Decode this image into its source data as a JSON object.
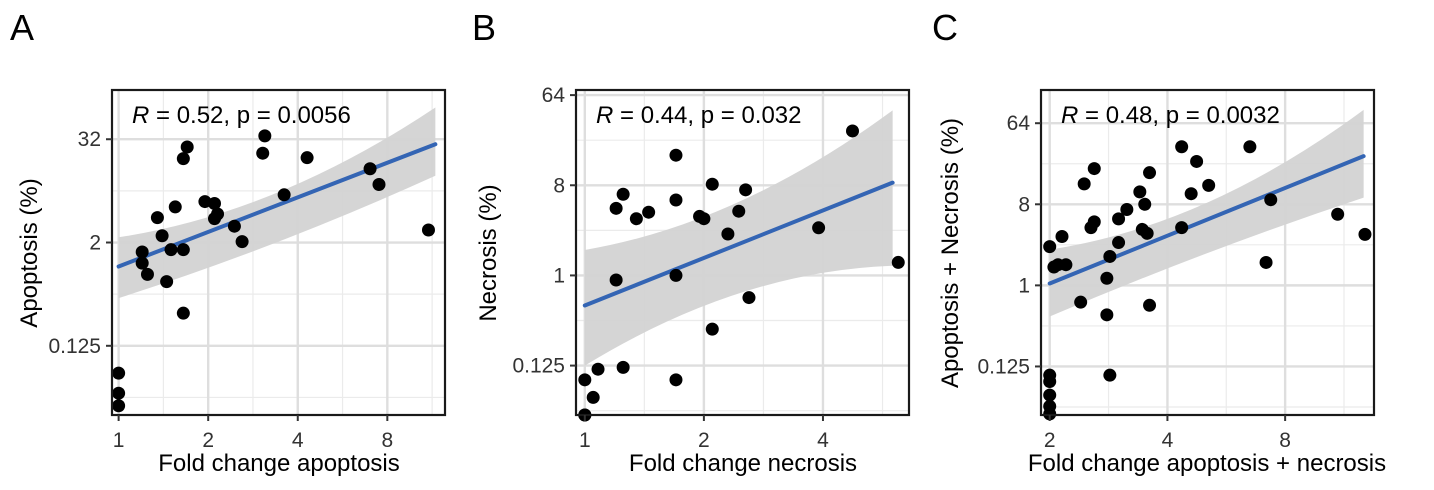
{
  "chart_data": [
    {
      "type": "scatter",
      "panel_label": "A",
      "xlabel": "Fold change apoptosis",
      "ylabel": "Apoptosis (%)",
      "x_scale": "log2",
      "y_scale": "log2",
      "xlim": [
        0.95,
        12.5
      ],
      "ylim": [
        0.0195,
        120
      ],
      "x_ticks": [
        1,
        2,
        4,
        8
      ],
      "x_tick_labels": [
        "1",
        "2",
        "4",
        "8"
      ],
      "y_ticks": [
        0.125,
        2,
        32
      ],
      "y_tick_labels": [
        "0.125",
        "2",
        "32"
      ],
      "grid": true,
      "annotation": {
        "r_symbol": "R",
        "text": " = 0.52, p = 0.0056"
      },
      "fit": {
        "x_start": 1.0,
        "y_start": 1.05,
        "x_end": 11.6,
        "y_end": 28,
        "ci_start": [
          0.45,
          2.3
        ],
        "ci_mid": [
          1.75,
          4.4
        ],
        "ci_end": [
          12,
          75
        ]
      },
      "points": [
        [
          1,
          0.025
        ],
        [
          1,
          0.035
        ],
        [
          1,
          0.06
        ],
        [
          1.2,
          1.55
        ],
        [
          1.2,
          1.15
        ],
        [
          1.25,
          0.85
        ],
        [
          1.35,
          3.9
        ],
        [
          1.4,
          2.4
        ],
        [
          1.45,
          0.7
        ],
        [
          1.5,
          1.65
        ],
        [
          1.55,
          5.2
        ],
        [
          1.65,
          19
        ],
        [
          1.65,
          1.65
        ],
        [
          1.65,
          0.3
        ],
        [
          1.7,
          26
        ],
        [
          1.95,
          6
        ],
        [
          2.1,
          5.7
        ],
        [
          2.1,
          3.8
        ],
        [
          2.15,
          4.3
        ],
        [
          2.45,
          3.1
        ],
        [
          2.6,
          2.05
        ],
        [
          3.05,
          22
        ],
        [
          3.1,
          35
        ],
        [
          3.6,
          7.2
        ],
        [
          4.3,
          19.5
        ],
        [
          7,
          14.5
        ],
        [
          7.5,
          9.5
        ],
        [
          11,
          2.8
        ]
      ],
      "colors": {
        "points": "#000000",
        "line": "#3465b4",
        "band": "#d3d3d3"
      }
    },
    {
      "type": "scatter",
      "panel_label": "B",
      "xlabel": "Fold change necrosis",
      "ylabel": "Necrosis (%)",
      "x_scale": "log2",
      "y_scale": "log2",
      "xlim": [
        0.95,
        6.6
      ],
      "ylim": [
        0.04,
        72
      ],
      "x_ticks": [
        1,
        2,
        4
      ],
      "x_tick_labels": [
        "1",
        "2",
        "4"
      ],
      "y_ticks": [
        0.125,
        1,
        8,
        64
      ],
      "y_tick_labels": [
        "0.125",
        "1",
        "8",
        "64"
      ],
      "grid": true,
      "annotation": {
        "r_symbol": "R",
        "text": " = 0.44, p = 0.032"
      },
      "fit": {
        "x_start": 1.0,
        "y_start": 0.5,
        "x_end": 6.0,
        "y_end": 8.5,
        "ci_start": [
          0.125,
          1.8
        ],
        "ci_mid": [
          1.1,
          3.3
        ],
        "ci_end": [
          1.25,
          45
        ]
      },
      "points": [
        [
          1,
          0.04
        ],
        [
          1,
          0.04
        ],
        [
          1,
          0.09
        ],
        [
          1.05,
          0.06
        ],
        [
          1.08,
          0.115
        ],
        [
          1.2,
          0.9
        ],
        [
          1.2,
          4.7
        ],
        [
          1.25,
          6.5
        ],
        [
          1.25,
          0.12
        ],
        [
          1.35,
          3.7
        ],
        [
          1.45,
          4.3
        ],
        [
          1.7,
          16
        ],
        [
          1.7,
          5.7
        ],
        [
          1.7,
          1
        ],
        [
          1.7,
          0.09
        ],
        [
          1.95,
          3.9
        ],
        [
          2,
          3.7
        ],
        [
          2.1,
          8.2
        ],
        [
          2.1,
          0.29
        ],
        [
          2.3,
          2.6
        ],
        [
          2.45,
          4.4
        ],
        [
          2.55,
          7.2
        ],
        [
          2.6,
          0.6
        ],
        [
          3.9,
          3
        ],
        [
          4.75,
          28
        ],
        [
          6.2,
          1.35
        ]
      ],
      "colors": {
        "points": "#000000",
        "line": "#3465b4",
        "band": "#d3d3d3"
      }
    },
    {
      "type": "scatter",
      "panel_label": "C",
      "xlabel": "Fold change apoptosis + necrosis",
      "ylabel": "Apoptosis + Necrosis (%)",
      "x_scale": "log2",
      "y_scale": "log2",
      "xlim": [
        1.9,
        13.5
      ],
      "ylim": [
        0.036,
        150
      ],
      "x_ticks": [
        2,
        4,
        8
      ],
      "x_tick_labels": [
        "2",
        "4",
        "8"
      ],
      "y_ticks": [
        0.125,
        1,
        8,
        64
      ],
      "y_tick_labels": [
        "0.125",
        "1",
        "8",
        "64"
      ],
      "grid": true,
      "annotation": {
        "r_symbol": "R",
        "text": " = 0.48, p = 0.0032"
      },
      "fit": {
        "x_start": 2.0,
        "y_start": 1.05,
        "x_end": 12.7,
        "y_end": 27.5,
        "ci_start": [
          0.45,
          2.5
        ],
        "ci_mid": [
          2.5,
          4.6
        ],
        "ci_end": [
          9.5,
          90
        ]
      },
      "points": [
        [
          2,
          0.037
        ],
        [
          2,
          0.045
        ],
        [
          2,
          0.06
        ],
        [
          2,
          0.085
        ],
        [
          2,
          0.1
        ],
        [
          2,
          2.7
        ],
        [
          2.05,
          1.6
        ],
        [
          2.1,
          1.7
        ],
        [
          2.15,
          3.5
        ],
        [
          2.2,
          1.7
        ],
        [
          2.4,
          0.65
        ],
        [
          2.45,
          13.5
        ],
        [
          2.55,
          4.4
        ],
        [
          2.6,
          5.1
        ],
        [
          2.6,
          20
        ],
        [
          2.8,
          1.2
        ],
        [
          2.8,
          0.47
        ],
        [
          2.85,
          2.1
        ],
        [
          2.85,
          0.1
        ],
        [
          3,
          3
        ],
        [
          3,
          5.5
        ],
        [
          3.15,
          7
        ],
        [
          3.4,
          11
        ],
        [
          3.45,
          4.2
        ],
        [
          3.5,
          8
        ],
        [
          3.55,
          3.8
        ],
        [
          3.6,
          18
        ],
        [
          3.6,
          0.6
        ],
        [
          4.35,
          35
        ],
        [
          4.35,
          4.4
        ],
        [
          4.6,
          10.5
        ],
        [
          4.75,
          24
        ],
        [
          5.1,
          13
        ],
        [
          6.5,
          35
        ],
        [
          7.15,
          1.8
        ],
        [
          7.35,
          9
        ],
        [
          10.9,
          6.2
        ],
        [
          12.8,
          3.7
        ]
      ],
      "colors": {
        "points": "#000000",
        "line": "#3465b4",
        "band": "#d3d3d3"
      }
    }
  ]
}
